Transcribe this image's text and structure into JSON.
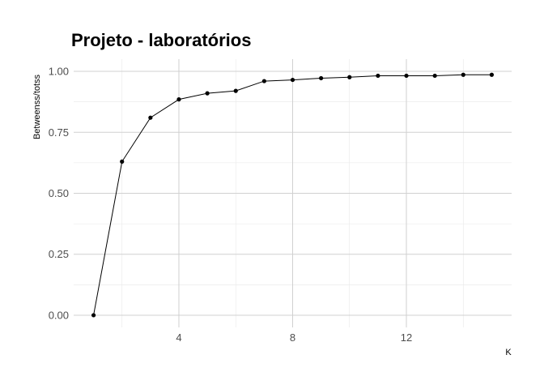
{
  "chart_data": {
    "type": "line",
    "title": "Projeto - laboratórios",
    "xlabel": "K",
    "ylabel": "Betweenss/totss",
    "x": [
      1,
      2,
      3,
      4,
      5,
      6,
      7,
      8,
      9,
      10,
      11,
      12,
      13,
      14,
      15
    ],
    "values": [
      0.0,
      0.63,
      0.81,
      0.885,
      0.91,
      0.92,
      0.96,
      0.965,
      0.972,
      0.976,
      0.982,
      0.982,
      0.982,
      0.986,
      0.986
    ],
    "xlim": [
      0.3,
      15.7
    ],
    "ylim": [
      -0.05,
      1.05
    ],
    "x_ticks": [
      4,
      8,
      12
    ],
    "x_tick_labels": [
      "4",
      "8",
      "12"
    ],
    "y_ticks": [
      0,
      0.25,
      0.5,
      0.75,
      1.0
    ],
    "y_tick_labels": [
      "0.00",
      "0.25",
      "0.50",
      "0.75",
      "1.00"
    ],
    "grid": true,
    "legend": "none",
    "colors": {
      "line": "#000000",
      "points": "#000000",
      "grid": "#d0d0d0"
    }
  }
}
